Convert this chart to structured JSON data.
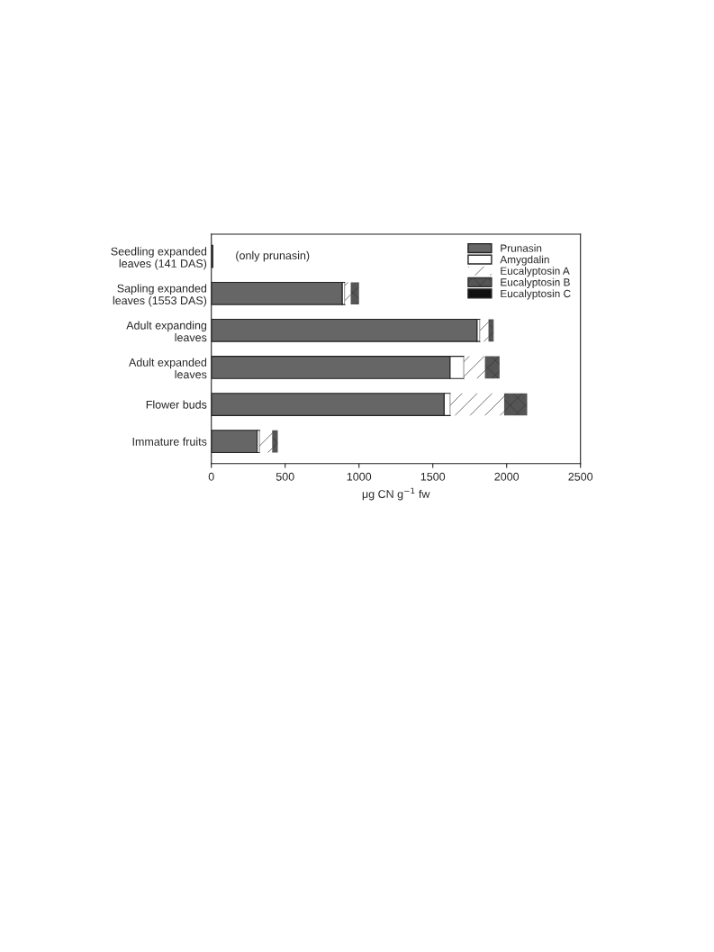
{
  "chart_data": {
    "type": "bar",
    "orientation": "horizontal",
    "stacked": true,
    "categories": [
      "Seedling expanded\nleaves (141 DAS)",
      "Sapling expanded\nleaves (1553 DAS)",
      "Adult expanding\nleaves",
      "Adult expanded\nleaves",
      "Flower buds",
      "Immature fruits"
    ],
    "series": [
      {
        "name": "Prunasin",
        "color": "#666666",
        "values": [
          10,
          887,
          1800,
          1617,
          1577,
          310
        ]
      },
      {
        "name": "Amygdalin",
        "color": "#ffffff",
        "values": [
          null,
          18,
          20,
          94,
          42,
          17
        ]
      },
      {
        "name": "Eucalyptosin A",
        "color": "#ffffff",
        "values": [
          null,
          39,
          57,
          142,
          364,
          85
        ]
      },
      {
        "name": "Eucalyptosin B",
        "color": "#555555",
        "values": [
          null,
          56,
          35,
          99,
          156,
          38
        ]
      },
      {
        "name": "Eucalyptosin C",
        "color": "#111111",
        "values": [
          null,
          null,
          null,
          null,
          null,
          null
        ]
      }
    ],
    "xlabel": "μg CN g$^{−1}$ fw",
    "xlim": [
      0,
      2500
    ],
    "xticks": [
      0,
      500,
      1000,
      1500,
      2000,
      2500
    ],
    "annotations": [
      {
        "text": "(only prunasin)",
        "x": 10,
        "y": "Seedling expanded\nleaves (141 DAS)"
      }
    ],
    "legend": "top right",
    "grid": false
  }
}
